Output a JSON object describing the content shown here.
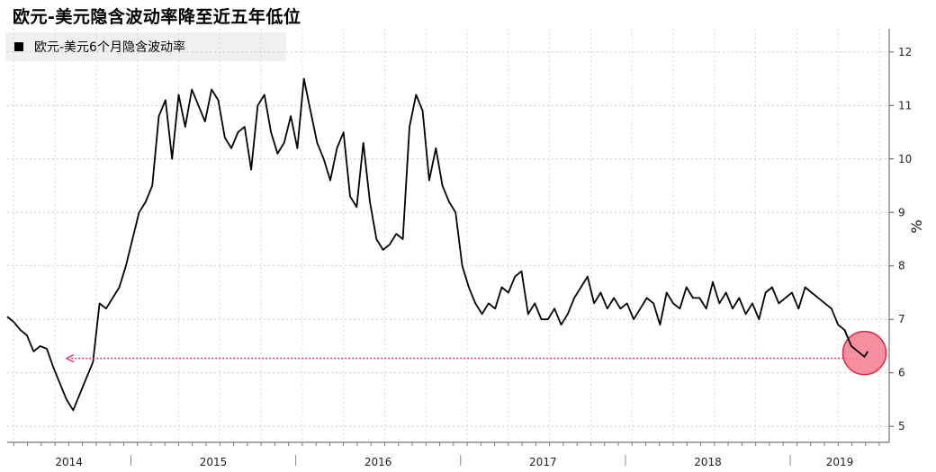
{
  "chart_data": {
    "type": "line",
    "title": "欧元-美元隐含波动率降至近五年低位",
    "ylabel": "%",
    "ylim": [
      4.7,
      12.3
    ],
    "yticks": [
      5,
      6,
      7,
      8,
      9,
      10,
      11,
      12
    ],
    "x_tick_labels": [
      "2014",
      "2015",
      "2016",
      "2017",
      "2018",
      "2019"
    ],
    "grid": true,
    "legend_position": "top-left",
    "series": [
      {
        "name": "欧元-美元6个月隐含波动率",
        "color": "#000000",
        "x": [
          2013.8,
          2013.84,
          2013.88,
          2013.92,
          2013.96,
          2014.0,
          2014.04,
          2014.08,
          2014.12,
          2014.16,
          2014.2,
          2014.24,
          2014.28,
          2014.32,
          2014.36,
          2014.4,
          2014.44,
          2014.48,
          2014.52,
          2014.56,
          2014.6,
          2014.64,
          2014.68,
          2014.72,
          2014.76,
          2014.8,
          2014.84,
          2014.88,
          2014.92,
          2014.96,
          2015.0,
          2015.04,
          2015.08,
          2015.12,
          2015.16,
          2015.2,
          2015.24,
          2015.28,
          2015.32,
          2015.36,
          2015.4,
          2015.44,
          2015.48,
          2015.52,
          2015.56,
          2015.6,
          2015.64,
          2015.68,
          2015.72,
          2015.76,
          2015.8,
          2015.84,
          2015.88,
          2015.92,
          2015.96,
          2016.0,
          2016.04,
          2016.08,
          2016.12,
          2016.16,
          2016.2,
          2016.24,
          2016.28,
          2016.32,
          2016.36,
          2016.4,
          2016.44,
          2016.48,
          2016.52,
          2016.56,
          2016.6,
          2016.64,
          2016.68,
          2016.72,
          2016.76,
          2016.8,
          2016.84,
          2016.88,
          2016.92,
          2016.96,
          2017.0,
          2017.04,
          2017.08,
          2017.12,
          2017.16,
          2017.2,
          2017.24,
          2017.28,
          2017.32,
          2017.36,
          2017.4,
          2017.44,
          2017.48,
          2017.52,
          2017.56,
          2017.6,
          2017.64,
          2017.68,
          2017.72,
          2017.76,
          2017.8,
          2017.84,
          2017.88,
          2017.92,
          2017.96,
          2018.0,
          2018.04,
          2018.08,
          2018.12,
          2018.16,
          2018.2,
          2018.24,
          2018.28,
          2018.32,
          2018.36,
          2018.4,
          2018.44,
          2018.48,
          2018.52,
          2018.56,
          2018.6,
          2018.64,
          2018.68,
          2018.72,
          2018.76,
          2018.8,
          2018.84,
          2018.88,
          2018.92,
          2018.96,
          2019.0,
          2019.02
        ],
        "y": [
          7.05,
          6.95,
          6.8,
          6.7,
          6.4,
          6.5,
          6.45,
          6.1,
          5.8,
          5.5,
          5.3,
          5.6,
          5.9,
          6.2,
          7.3,
          7.2,
          7.4,
          7.6,
          8.0,
          8.5,
          9.0,
          9.2,
          9.5,
          10.8,
          11.1,
          10.0,
          11.2,
          10.6,
          11.3,
          11.0,
          10.7,
          11.3,
          11.1,
          10.4,
          10.2,
          10.5,
          10.6,
          9.8,
          11.0,
          11.2,
          10.5,
          10.1,
          10.3,
          10.8,
          10.2,
          11.5,
          10.9,
          10.3,
          10.0,
          9.6,
          10.2,
          10.5,
          9.3,
          9.1,
          10.3,
          9.2,
          8.5,
          8.3,
          8.4,
          8.6,
          8.5,
          10.6,
          11.2,
          10.9,
          9.6,
          10.2,
          9.5,
          9.2,
          9.0,
          8.0,
          7.6,
          7.3,
          7.1,
          7.3,
          7.2,
          7.6,
          7.5,
          7.8,
          7.9,
          7.1,
          7.3,
          7.0,
          7.0,
          7.2,
          6.9,
          7.1,
          7.4,
          7.6,
          7.8,
          7.3,
          7.5,
          7.2,
          7.4,
          7.2,
          7.3,
          7.0,
          7.2,
          7.4,
          7.3,
          6.9,
          7.5,
          7.3,
          7.2,
          7.6,
          7.4,
          7.4,
          7.2,
          7.7,
          7.3,
          7.5,
          7.2,
          7.4,
          7.1,
          7.3,
          7.0,
          7.5,
          7.6,
          7.3,
          7.4,
          7.5,
          7.2,
          7.6,
          7.5,
          7.4,
          7.3,
          7.2,
          6.9,
          6.8,
          6.5,
          6.4,
          6.3,
          6.4
        ]
      }
    ],
    "annotations": [
      {
        "type": "arrow",
        "direction": "left",
        "color": "#e8336b",
        "y": 6.27,
        "x_from": 2018.96,
        "x_to": 2014.16
      },
      {
        "type": "circle",
        "fill": "#f47d8f",
        "stroke": "#e0253f",
        "x": 2019.0,
        "y": 6.37
      }
    ]
  }
}
